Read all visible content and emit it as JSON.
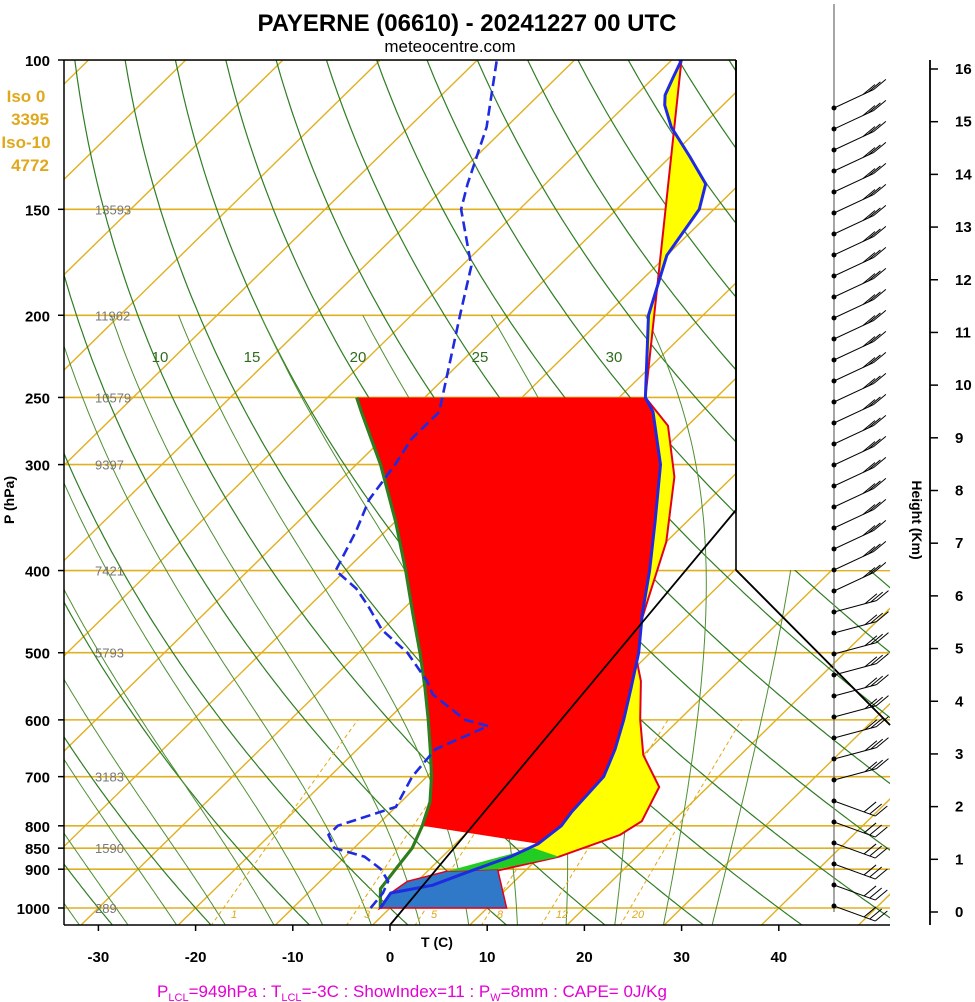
{
  "chart_data": {
    "type": "line",
    "title": "PAYERNE (06610) - 20241227 00 UTC",
    "subtitle": "meteocentre.com",
    "xlabel": "T (C)",
    "ylabel": "P (hPa)",
    "ylabel_right": "Height (Km)",
    "xlim": [
      -33,
      50
    ],
    "ylim": [
      1000,
      100
    ],
    "x_ticks": [
      -30,
      -20,
      -10,
      0,
      10,
      20,
      30,
      40
    ],
    "x_tick_labels": [
      "-30",
      "-20",
      "-10",
      "0",
      "10",
      "20",
      "30",
      "40"
    ],
    "p_ticks": [
      100,
      150,
      200,
      250,
      300,
      400,
      500,
      600,
      700,
      800,
      850,
      900,
      1000
    ],
    "p_tick_labels": [
      "100",
      "150",
      "200",
      "250",
      "300",
      "400",
      "500",
      "600",
      "700",
      "800",
      "850",
      "900",
      "1000"
    ],
    "height_ticks": [
      0,
      1,
      2,
      3,
      4,
      5,
      6,
      7,
      8,
      9,
      10,
      11,
      12,
      13,
      14,
      15,
      16
    ],
    "height_tick_labels": [
      "0",
      "1",
      "2",
      "3",
      "4",
      "5",
      "6",
      "7",
      "8",
      "9",
      "10",
      "11",
      "12",
      "13",
      "14",
      "15",
      "16"
    ],
    "level_heights": [
      {
        "p": 150,
        "label": "13593"
      },
      {
        "p": 200,
        "label": "11962"
      },
      {
        "p": 250,
        "label": "10579"
      },
      {
        "p": 300,
        "label": "9397"
      },
      {
        "p": 400,
        "label": "7421"
      },
      {
        "p": 500,
        "label": "5793"
      },
      {
        "p": 700,
        "label": "3183"
      },
      {
        "p": 850,
        "label": "1590"
      },
      {
        "p": 1000,
        "label": "289"
      }
    ],
    "isotherm_info": [
      "Iso 0",
      "3395",
      "Iso-10",
      "4772"
    ],
    "mixing_ratio_labels": [
      "1",
      "3",
      "5",
      "8",
      "12",
      "20"
    ],
    "theta_e_labels": [
      "10",
      "15",
      "20",
      "25",
      "30"
    ],
    "wind_label_set": [
      "30",
      "20",
      "10",
      "0",
      "10",
      "20",
      "30"
    ],
    "series": [
      {
        "name": "temperature",
        "color": "#1f2be0",
        "points": [
          [
            -1,
            1000
          ],
          [
            -1.5,
            960
          ],
          [
            2,
            940
          ],
          [
            4,
            910
          ],
          [
            7,
            870
          ],
          [
            8.5,
            840
          ],
          [
            9,
            800
          ],
          [
            8.6,
            770
          ],
          [
            8.2,
            700
          ],
          [
            6.5,
            650
          ],
          [
            4.3,
            600
          ],
          [
            1.7,
            550
          ],
          [
            -1.2,
            500
          ],
          [
            -4.9,
            450
          ],
          [
            -8.7,
            400
          ],
          [
            -13.3,
            350
          ],
          [
            -18.7,
            300
          ],
          [
            -25,
            260
          ],
          [
            -27.3,
            250
          ],
          [
            -35.6,
            200
          ],
          [
            -40,
            170
          ],
          [
            -41.5,
            150
          ],
          [
            -43.5,
            140
          ],
          [
            -48,
            130
          ],
          [
            -53,
            120
          ],
          [
            -56,
            113
          ],
          [
            -57,
            110
          ],
          [
            -58,
            105
          ],
          [
            -59,
            100
          ]
        ]
      },
      {
        "name": "dewpoint",
        "color": "#1f2be0",
        "points": [
          [
            -2,
            1000
          ],
          [
            -2.3,
            960
          ],
          [
            -3,
            930
          ],
          [
            -5,
            900
          ],
          [
            -8,
            870
          ],
          [
            -12,
            850
          ],
          [
            -14,
            820
          ],
          [
            -14,
            800
          ],
          [
            -10,
            760
          ],
          [
            -11.5,
            700
          ],
          [
            -12,
            650
          ],
          [
            -9,
            610
          ],
          [
            -12,
            600
          ],
          [
            -18,
            560
          ],
          [
            -20,
            540
          ],
          [
            -25,
            500
          ],
          [
            -30,
            470
          ],
          [
            -34,
            440
          ],
          [
            -37,
            420
          ],
          [
            -41,
            400
          ],
          [
            -43,
            360
          ],
          [
            -45,
            330
          ],
          [
            -46,
            300
          ],
          [
            -47,
            280
          ],
          [
            -47,
            260
          ],
          [
            -55,
            200
          ],
          [
            -59,
            175
          ],
          [
            -66,
            150
          ],
          [
            -68,
            140
          ],
          [
            -72,
            120
          ],
          [
            -78,
            100
          ]
        ]
      }
    ],
    "parcel": {
      "name": "parcel",
      "color": "#2e7d1e",
      "points": [
        [
          -1,
          1000
        ],
        [
          -3,
          949
        ],
        [
          -3.5,
          900
        ],
        [
          -4,
          850
        ],
        [
          -5.3,
          800
        ],
        [
          -7,
          750
        ],
        [
          -9.5,
          700
        ],
        [
          -12.5,
          650
        ],
        [
          -15.8,
          600
        ],
        [
          -19.5,
          550
        ],
        [
          -23.7,
          500
        ],
        [
          -28.5,
          450
        ],
        [
          -33.8,
          400
        ],
        [
          -40,
          350
        ],
        [
          -47.5,
          300
        ],
        [
          -55,
          260
        ],
        [
          -57,
          250
        ]
      ]
    },
    "shading": {
      "cape_color": "#ff0000",
      "cin_blue_color": "#2f79c8",
      "green_color": "#22cc22",
      "yellow_color": "#ffff00",
      "outline_color": "#e2001a"
    },
    "footer": "P<sub>LCL</sub>=949hPa : T<sub>LCL</sub>=-3C : ShowIndex=11 : P<sub>W</sub>=8mm : CAPE= 0J/Kg"
  },
  "footer_parts": {
    "a": "P",
    "a_sub": "LCL",
    "b": "=949hPa : T",
    "b_sub": "LCL",
    "c": "=-3C : ShowIndex=11 : P",
    "c_sub": "W",
    "d": "=8mm : CAPE= 0J/Kg"
  }
}
